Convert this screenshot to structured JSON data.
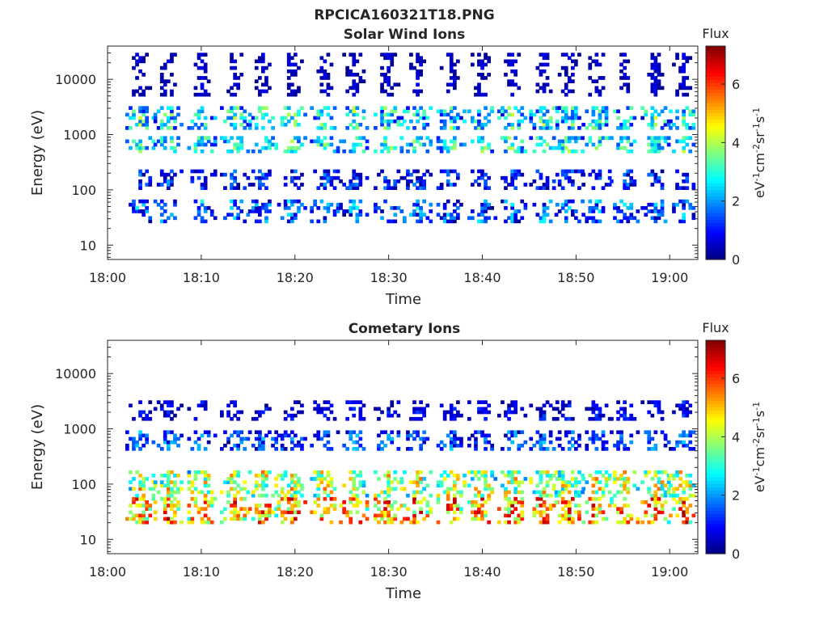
{
  "figure_title": "RPCICA160321T18.PNG",
  "colorbar": {
    "title": "Flux",
    "units_label": "eV-1cm-2sr-1s-1",
    "range": [
      0,
      7.3
    ],
    "ticks": [
      {
        "value": 0,
        "label": "0"
      },
      {
        "value": 2,
        "label": "2"
      },
      {
        "value": 4,
        "label": "4"
      },
      {
        "value": 6,
        "label": "6"
      }
    ],
    "colormap": [
      "#00007f",
      "#0000ff",
      "#007fff",
      "#00ffff",
      "#7fff7f",
      "#ffff00",
      "#ff7f00",
      "#ff0000",
      "#7f0000"
    ]
  },
  "chart_data": [
    {
      "type": "heatmap",
      "title": "Solar Wind Ions",
      "xlabel": "Time",
      "ylabel": "Energy (eV)",
      "y_scale": "log",
      "xlim": [
        "18:00",
        "19:03"
      ],
      "ylim": [
        5.5,
        40000
      ],
      "x_ticks": [
        "18:00",
        "18:10",
        "18:20",
        "18:30",
        "18:40",
        "18:50",
        "19:00"
      ],
      "y_ticks": [
        {
          "value": 10,
          "label": "10"
        },
        {
          "value": 100,
          "label": "100"
        },
        {
          "value": 1000,
          "label": "1000"
        },
        {
          "value": 10000,
          "label": "10000"
        }
      ],
      "sweeps": [
        3.3,
        6.3,
        9.9,
        13.4,
        16.4,
        19.5,
        23.0,
        26.1,
        29.8,
        32.9,
        36.5,
        39.8,
        43.0,
        46.4,
        49.1,
        52.0,
        55.0,
        58.3,
        61.3
      ],
      "bands": [
        {
          "e_lo": 25,
          "e_hi": 70,
          "level": 1.6,
          "spread": 1.4
        },
        {
          "e_lo": 100,
          "e_hi": 250,
          "level": 1.2,
          "spread": 1.0
        },
        {
          "e_lo": 500,
          "e_hi": 1000,
          "level": 3.0,
          "spread": 1.2
        },
        {
          "e_lo": 1200,
          "e_hi": 3500,
          "level": 2.8,
          "spread": 1.5
        },
        {
          "e_lo": 5000,
          "e_hi": 30000,
          "level": 0.6,
          "spread": 0.3
        }
      ]
    },
    {
      "type": "heatmap",
      "title": "Cometary Ions",
      "xlabel": "Time",
      "ylabel": "Energy (eV)",
      "y_scale": "log",
      "xlim": [
        "18:00",
        "19:03"
      ],
      "ylim": [
        5.5,
        40000
      ],
      "x_ticks": [
        "18:00",
        "18:10",
        "18:20",
        "18:30",
        "18:40",
        "18:50",
        "19:00"
      ],
      "y_ticks": [
        {
          "value": 10,
          "label": "10"
        },
        {
          "value": 100,
          "label": "100"
        },
        {
          "value": 1000,
          "label": "1000"
        },
        {
          "value": 10000,
          "label": "10000"
        }
      ],
      "sweeps": [
        3.3,
        6.3,
        9.9,
        13.4,
        16.4,
        19.5,
        23.0,
        26.1,
        29.8,
        32.9,
        36.5,
        39.8,
        43.0,
        46.4,
        49.1,
        52.0,
        55.0,
        58.3,
        61.3
      ],
      "bands": [
        {
          "e_lo": 20,
          "e_hi": 60,
          "level": 5.4,
          "spread": 1.8
        },
        {
          "e_lo": 60,
          "e_hi": 180,
          "level": 4.3,
          "spread": 1.6
        },
        {
          "e_lo": 400,
          "e_hi": 1000,
          "level": 1.6,
          "spread": 1.0
        },
        {
          "e_lo": 1500,
          "e_hi": 3500,
          "level": 0.9,
          "spread": 0.6
        }
      ]
    }
  ]
}
